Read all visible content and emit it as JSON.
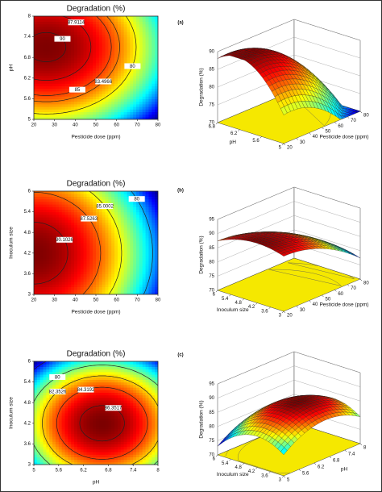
{
  "chart_data": [
    {
      "type": "contour",
      "title": "Degradation  (%)",
      "x_label": "Pesticide dose (ppm)",
      "y_label": "pH",
      "xlim": [
        20,
        80
      ],
      "xticks": [
        20,
        30,
        40,
        50,
        60,
        70,
        80
      ],
      "ylim": [
        5,
        8
      ],
      "yticks": [
        5,
        5.6,
        6.2,
        6.8,
        7.4,
        8
      ],
      "contour_levels": [
        90,
        87.9114,
        85,
        83.4966,
        80
      ]
    },
    {
      "type": "surface",
      "panel_label": "(a)",
      "z_label": "Degradation (%)",
      "x_label": "Pesticide dose (ppm)",
      "y_label": "pH",
      "zlim": [
        70,
        90
      ],
      "zticks": [
        70,
        75,
        80,
        85,
        90
      ],
      "xticks": [
        20,
        30,
        40,
        50,
        60,
        70,
        80
      ],
      "yticks": [
        5,
        5.6,
        6.2,
        6.8
      ]
    },
    {
      "type": "contour",
      "title": "Degradation  (%)",
      "x_label": "Pesticide dose (ppm)",
      "y_label": "Inoculum size",
      "xlim": [
        20,
        80
      ],
      "xticks": [
        20,
        30,
        40,
        50,
        60,
        70,
        80
      ],
      "ylim": [
        3,
        6
      ],
      "yticks": [
        3,
        3.6,
        4.2,
        4.8,
        5.4,
        6
      ],
      "contour_levels": [
        90.1026,
        87.5263,
        85.0002,
        80,
        75
      ]
    },
    {
      "type": "surface",
      "panel_label": "(b)",
      "z_label": "Degradation (%)",
      "x_label": "Pesticide dose (ppm)",
      "y_label": "Inoculum size",
      "zlim": [
        70,
        95
      ],
      "zticks": [
        70,
        75,
        80,
        85,
        90,
        95
      ],
      "xticks": [
        20,
        30,
        40,
        50,
        60,
        70,
        80
      ],
      "yticks": [
        3,
        3.6,
        4.2,
        4.8,
        5.4,
        6
      ]
    },
    {
      "type": "contour",
      "title": "Degradation  (%)",
      "x_label": "pH",
      "y_label": "Inoculum size",
      "xlim": [
        5,
        8
      ],
      "xticks": [
        5,
        5.6,
        6.2,
        6.8,
        7.4,
        8
      ],
      "ylim": [
        3,
        6
      ],
      "yticks": [
        3,
        3.6,
        4.2,
        4.8,
        5.4,
        6
      ],
      "contour_levels": [
        86.3517,
        84.3192,
        82.3526,
        80,
        75
      ]
    },
    {
      "type": "surface",
      "panel_label": "(c)",
      "z_label": "Degradation (%)",
      "x_label": "pH",
      "y_label": "Inoculum size",
      "zlim": [
        70,
        95
      ],
      "zticks": [
        70,
        75,
        80,
        85,
        90,
        95
      ],
      "xticks": [
        5,
        5.6,
        6.2,
        6.8,
        7.4,
        8
      ],
      "yticks": [
        3,
        3.6,
        4.2,
        4.8,
        5.4,
        6
      ]
    }
  ]
}
